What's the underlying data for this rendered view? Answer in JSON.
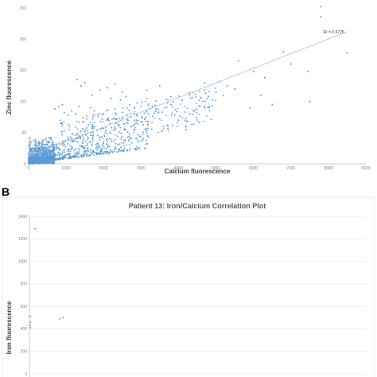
{
  "chart_data": [
    {
      "type": "scatter",
      "panel_label": "",
      "title": "",
      "xlabel": "Calcium fluorescence",
      "ylabel": "Zinc fluorescence",
      "xlim": [
        0,
        9000
      ],
      "ylim": [
        0,
        250
      ],
      "x_ticks": [
        0,
        1000,
        2000,
        3000,
        4000,
        5000,
        6000,
        7000,
        8000,
        9000
      ],
      "y_ticks": [
        0,
        50,
        100,
        150,
        200,
        250
      ],
      "grid": false,
      "legend": "none",
      "marker_color": "#5b9bd5",
      "trendline": {
        "type": "linear",
        "x": [
          0,
          8500
        ],
        "y": [
          12,
          212
        ],
        "r2_label": "R² = 0.6725",
        "color": "#9dc3e6"
      },
      "points": {
        "x": [
          7800,
          7800,
          7500,
          8500,
          7000,
          6500,
          6200,
          5900,
          5500,
          5200,
          5000,
          4700,
          4800,
          4100,
          4000,
          4300,
          3900,
          3700,
          3600,
          3400,
          3300,
          3100,
          4400,
          4200,
          3000,
          2900,
          2750,
          2600,
          2450,
          6800,
          6000,
          5600,
          1300,
          1400,
          1500,
          1700,
          1900,
          2100,
          2200,
          2300,
          2500,
          2700,
          3150,
          3500,
          4550,
          4700,
          5100,
          5300,
          6300,
          7450,
          700,
          800,
          900,
          950,
          1050,
          1150,
          1250,
          1350,
          1450,
          1550,
          1650,
          1750,
          1850,
          2000,
          2350,
          2650,
          3200,
          3800
        ],
        "y": [
          252,
          236,
          100,
          178,
          160,
          95,
          110,
          90,
          120,
          110,
          115,
          130,
          108,
          102,
          70,
          80,
          78,
          62,
          60,
          88,
          92,
          72,
          85,
          55,
          68,
          78,
          60,
          108,
          102,
          180,
          148,
          165,
          135,
          125,
          130,
          110,
          118,
          122,
          105,
          128,
          115,
          95,
          118,
          125,
          102,
          90,
          132,
          125,
          138,
          148,
          88,
          92,
          95,
          82,
          78,
          85,
          80,
          92,
          74,
          72,
          90,
          85,
          76,
          80,
          72,
          70,
          80,
          95
        ]
      }
    },
    {
      "type": "scatter",
      "panel_label": "B",
      "title": "Patient 13: Iron/Calcium Correlation Plot",
      "xlabel": "",
      "ylabel": "Iron fluorescence",
      "ylim": [
        0,
        1400
      ],
      "y_ticks": [
        0,
        200,
        400,
        600,
        800,
        1000,
        1200,
        1400
      ],
      "grid": true,
      "legend": "none",
      "marker_color": "#5b9bd5",
      "points": {
        "x": [
          180,
          950,
          1050,
          20,
          25,
          15,
          30
        ],
        "y": [
          1290,
          490,
          500,
          510,
          460,
          430,
          410
        ]
      }
    }
  ]
}
